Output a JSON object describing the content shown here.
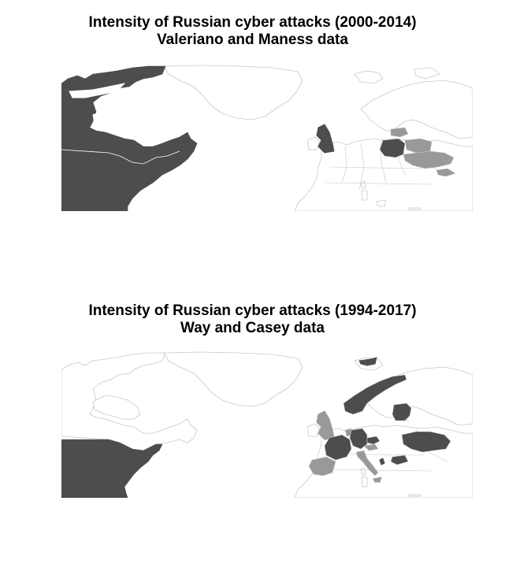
{
  "maps": [
    {
      "title_line1": "Intensity of Russian cyber attacks (2000-2014)",
      "title_line2": "Valeriano and Maness data",
      "high_intensity": [
        "United States",
        "Canada",
        "United Kingdom",
        "Poland"
      ],
      "low_intensity": [
        "Ukraine",
        "Belarus",
        "Lithuania",
        "Georgia"
      ]
    },
    {
      "title_line1": "Intensity of Russian cyber attacks (1994-2017)",
      "title_line2": "Way and Casey data",
      "high_intensity": [
        "United States",
        "Norway",
        "Germany",
        "France",
        "Ukraine",
        "Czech Republic",
        "Estonia",
        "Latvia",
        "Lithuania",
        "Bulgaria",
        "Montenegro"
      ],
      "low_intensity": [
        "United Kingdom",
        "Spain",
        "Italy",
        "Netherlands",
        "Austria"
      ]
    }
  ],
  "colors": {
    "high": "#4d4d4d",
    "low": "#999999",
    "none": "#ffffff",
    "border": "#c8c8c8",
    "internal_border": "#ffffff"
  }
}
